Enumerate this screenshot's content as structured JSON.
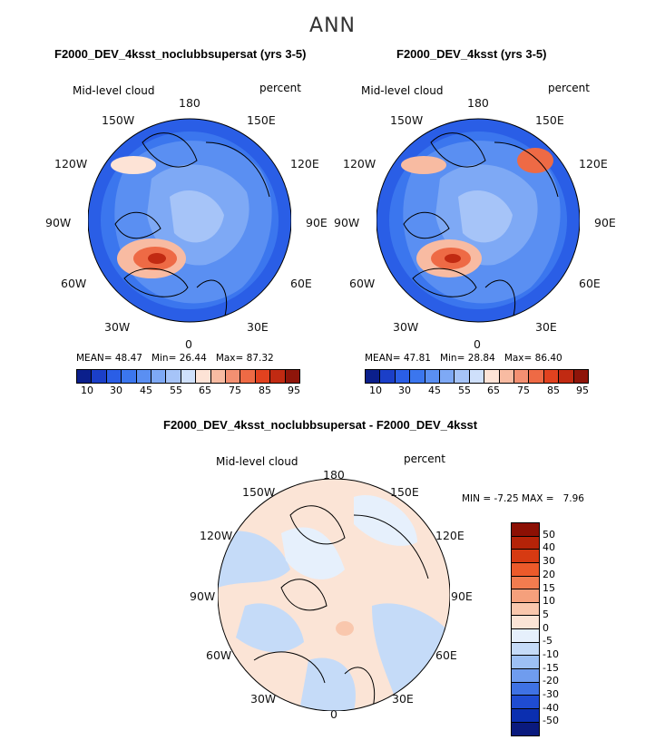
{
  "season": "ANN",
  "chart_data": [
    {
      "type": "heatmap",
      "projection": "north polar stereographic",
      "title": "F2000_DEV_4ksst_noclubbsupersat (yrs 3-5)",
      "field_label": "Mid-level cloud",
      "units": "percent",
      "lon_labels": [
        "180",
        "150E",
        "120E",
        "90E",
        "60E",
        "30E",
        "0",
        "30W",
        "60W",
        "90W",
        "120W",
        "150W"
      ],
      "stats": {
        "mean_label": "MEAN=",
        "mean": "48.47",
        "min_label": "Min=",
        "min": "26.44",
        "max_label": "Max=",
        "max": "87.32"
      },
      "colorbar": {
        "tick_labels": [
          "10",
          "30",
          "45",
          "55",
          "65",
          "75",
          "85",
          "95"
        ],
        "colors": [
          "#0b1f8c",
          "#1b3fc8",
          "#2a5ee6",
          "#3b76ee",
          "#5a8ff2",
          "#7ea9f5",
          "#a6c4f8",
          "#cfe0fb",
          "#fde3d6",
          "#f8bba2",
          "#f39072",
          "#ee6a45",
          "#e2421f",
          "#c12a12",
          "#8f150a"
        ]
      }
    },
    {
      "type": "heatmap",
      "projection": "north polar stereographic",
      "title": "F2000_DEV_4ksst (yrs 3-5)",
      "field_label": "Mid-level cloud",
      "units": "percent",
      "lon_labels": [
        "180",
        "150E",
        "120E",
        "90E",
        "60E",
        "30E",
        "0",
        "30W",
        "60W",
        "90W",
        "120W",
        "150W"
      ],
      "stats": {
        "mean_label": "MEAN=",
        "mean": "47.81",
        "min_label": "Min=",
        "min": "28.84",
        "max_label": "Max=",
        "max": "86.40"
      },
      "colorbar": {
        "tick_labels": [
          "10",
          "30",
          "45",
          "55",
          "65",
          "75",
          "85",
          "95"
        ],
        "colors": [
          "#0b1f8c",
          "#1b3fc8",
          "#2a5ee6",
          "#3b76ee",
          "#5a8ff2",
          "#7ea9f5",
          "#a6c4f8",
          "#cfe0fb",
          "#fde3d6",
          "#f8bba2",
          "#f39072",
          "#ee6a45",
          "#e2421f",
          "#c12a12",
          "#8f150a"
        ]
      }
    },
    {
      "type": "heatmap",
      "projection": "north polar stereographic",
      "title": "F2000_DEV_4ksst_noclubbsupersat - F2000_DEV_4ksst",
      "field_label": "Mid-level cloud",
      "units": "percent",
      "lon_labels": [
        "180",
        "150E",
        "120E",
        "90E",
        "60E",
        "30E",
        "0",
        "30W",
        "60W",
        "90W",
        "120W",
        "150W"
      ],
      "stats": {
        "min_label": "MIN =",
        "min": "-7.25",
        "max_label": "MAX =",
        "max": "7.96"
      },
      "colorbar": {
        "tick_labels": [
          "50",
          "40",
          "30",
          "20",
          "15",
          "10",
          "5",
          "0",
          "-5",
          "-10",
          "-15",
          "-20",
          "-30",
          "-40",
          "-50"
        ],
        "colors": [
          "#8c1004",
          "#b52308",
          "#d63a12",
          "#ec5a2a",
          "#f27c4f",
          "#f5a07c",
          "#f9c7ad",
          "#fbe4d6",
          "#e6f0fc",
          "#c5dbf8",
          "#9dc0f4",
          "#6f9cee",
          "#3f72e4",
          "#1f4cd2",
          "#0b2fb0",
          "#0a1a7e"
        ]
      }
    }
  ]
}
